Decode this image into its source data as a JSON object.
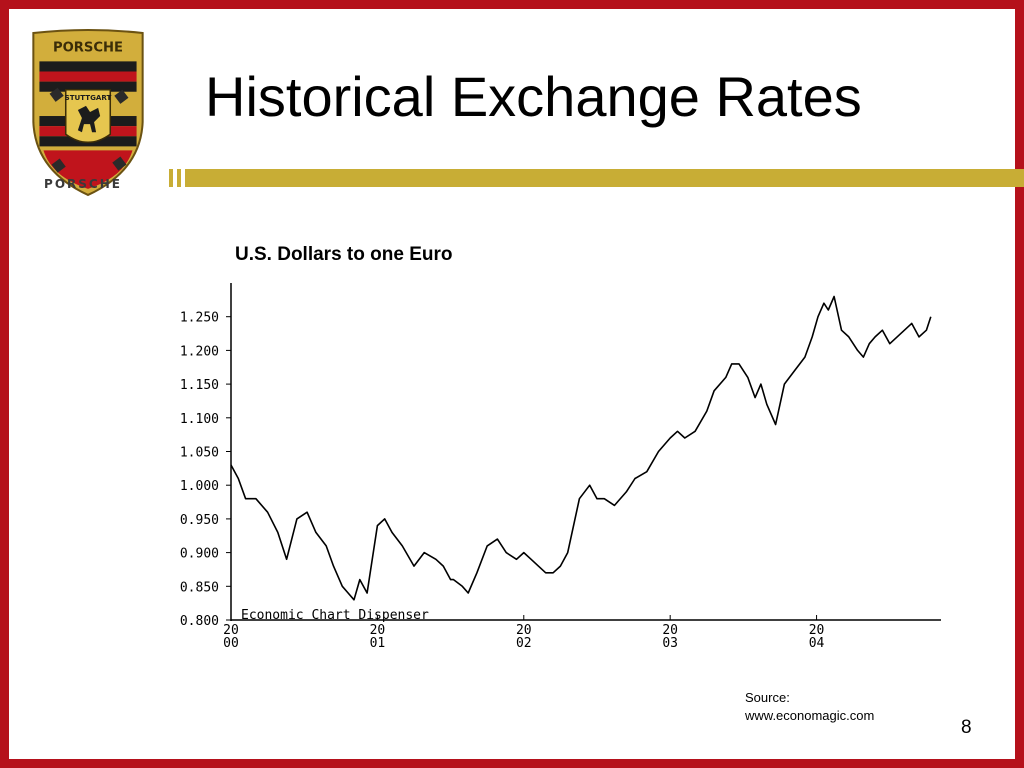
{
  "slide": {
    "title": "Historical Exchange Rates",
    "brand": "PORSCHE",
    "crest_text": "STUTTGART",
    "crest_header": "PORSCHE",
    "source_line1": "Source:",
    "source_line2": "www.economagic.com",
    "page_number": "8",
    "colors": {
      "border": "#b5111b",
      "accent_bar": "#c8ad35",
      "crest_gold": "#d2ae3c",
      "crest_red": "#c0141c"
    }
  },
  "chart_data": {
    "type": "line",
    "title": "U.S. Dollars to one Euro",
    "watermark": "Economic Chart Dispenser",
    "xlabel": "",
    "ylabel": "",
    "ylim": [
      0.8,
      1.3
    ],
    "yticks": [
      "0.800",
      "0.850",
      "0.900",
      "0.950",
      "1.000",
      "1.050",
      "1.100",
      "1.150",
      "1.200",
      "1.250"
    ],
    "xlim": [
      2000,
      2004.85
    ],
    "xticks": [
      {
        "top": "20",
        "bottom": "00"
      },
      {
        "top": "20",
        "bottom": "01"
      },
      {
        "top": "20",
        "bottom": "02"
      },
      {
        "top": "20",
        "bottom": "03"
      },
      {
        "top": "20",
        "bottom": "04"
      }
    ],
    "grid": false,
    "series": [
      {
        "x": [
          2000.0,
          2000.05,
          2000.1,
          2000.17,
          2000.25,
          2000.32,
          2000.38,
          2000.45,
          2000.52,
          2000.58,
          2000.65,
          2000.7,
          2000.76,
          2000.8,
          2000.84,
          2000.88,
          2000.93,
          2001.0,
          2001.05,
          2001.1,
          2001.17,
          2001.25,
          2001.32,
          2001.4,
          2001.45,
          2001.5,
          2001.52,
          2001.58,
          2001.62,
          2001.68,
          2001.75,
          2001.82,
          2001.88,
          2001.95,
          2002.0,
          2002.05,
          2002.1,
          2002.15,
          2002.2,
          2002.25,
          2002.3,
          2002.38,
          2002.45,
          2002.5,
          2002.55,
          2002.62,
          2002.7,
          2002.76,
          2002.84,
          2002.92,
          2003.0,
          2003.05,
          2003.1,
          2003.17,
          2003.25,
          2003.3,
          2003.38,
          2003.42,
          2003.47,
          2003.53,
          2003.58,
          2003.62,
          2003.66,
          2003.72,
          2003.78,
          2003.85,
          2003.92,
          2003.97,
          2004.01,
          2004.05,
          2004.08,
          2004.12,
          2004.17,
          2004.22,
          2004.28,
          2004.32,
          2004.36,
          2004.4,
          2004.45,
          2004.5,
          2004.55,
          2004.6,
          2004.65,
          2004.7,
          2004.75,
          2004.78
        ],
        "y": [
          1.03,
          1.01,
          0.98,
          0.98,
          0.96,
          0.93,
          0.89,
          0.95,
          0.96,
          0.93,
          0.91,
          0.88,
          0.85,
          0.84,
          0.83,
          0.86,
          0.84,
          0.94,
          0.95,
          0.93,
          0.91,
          0.88,
          0.9,
          0.89,
          0.88,
          0.86,
          0.86,
          0.85,
          0.84,
          0.87,
          0.91,
          0.92,
          0.9,
          0.89,
          0.9,
          0.89,
          0.88,
          0.87,
          0.87,
          0.88,
          0.9,
          0.98,
          1.0,
          0.98,
          0.98,
          0.97,
          0.99,
          1.01,
          1.02,
          1.05,
          1.07,
          1.08,
          1.07,
          1.08,
          1.11,
          1.14,
          1.16,
          1.18,
          1.18,
          1.16,
          1.13,
          1.15,
          1.12,
          1.09,
          1.15,
          1.17,
          1.19,
          1.22,
          1.25,
          1.27,
          1.26,
          1.28,
          1.23,
          1.22,
          1.2,
          1.19,
          1.21,
          1.22,
          1.23,
          1.21,
          1.22,
          1.23,
          1.24,
          1.22,
          1.23,
          1.25
        ]
      }
    ]
  }
}
